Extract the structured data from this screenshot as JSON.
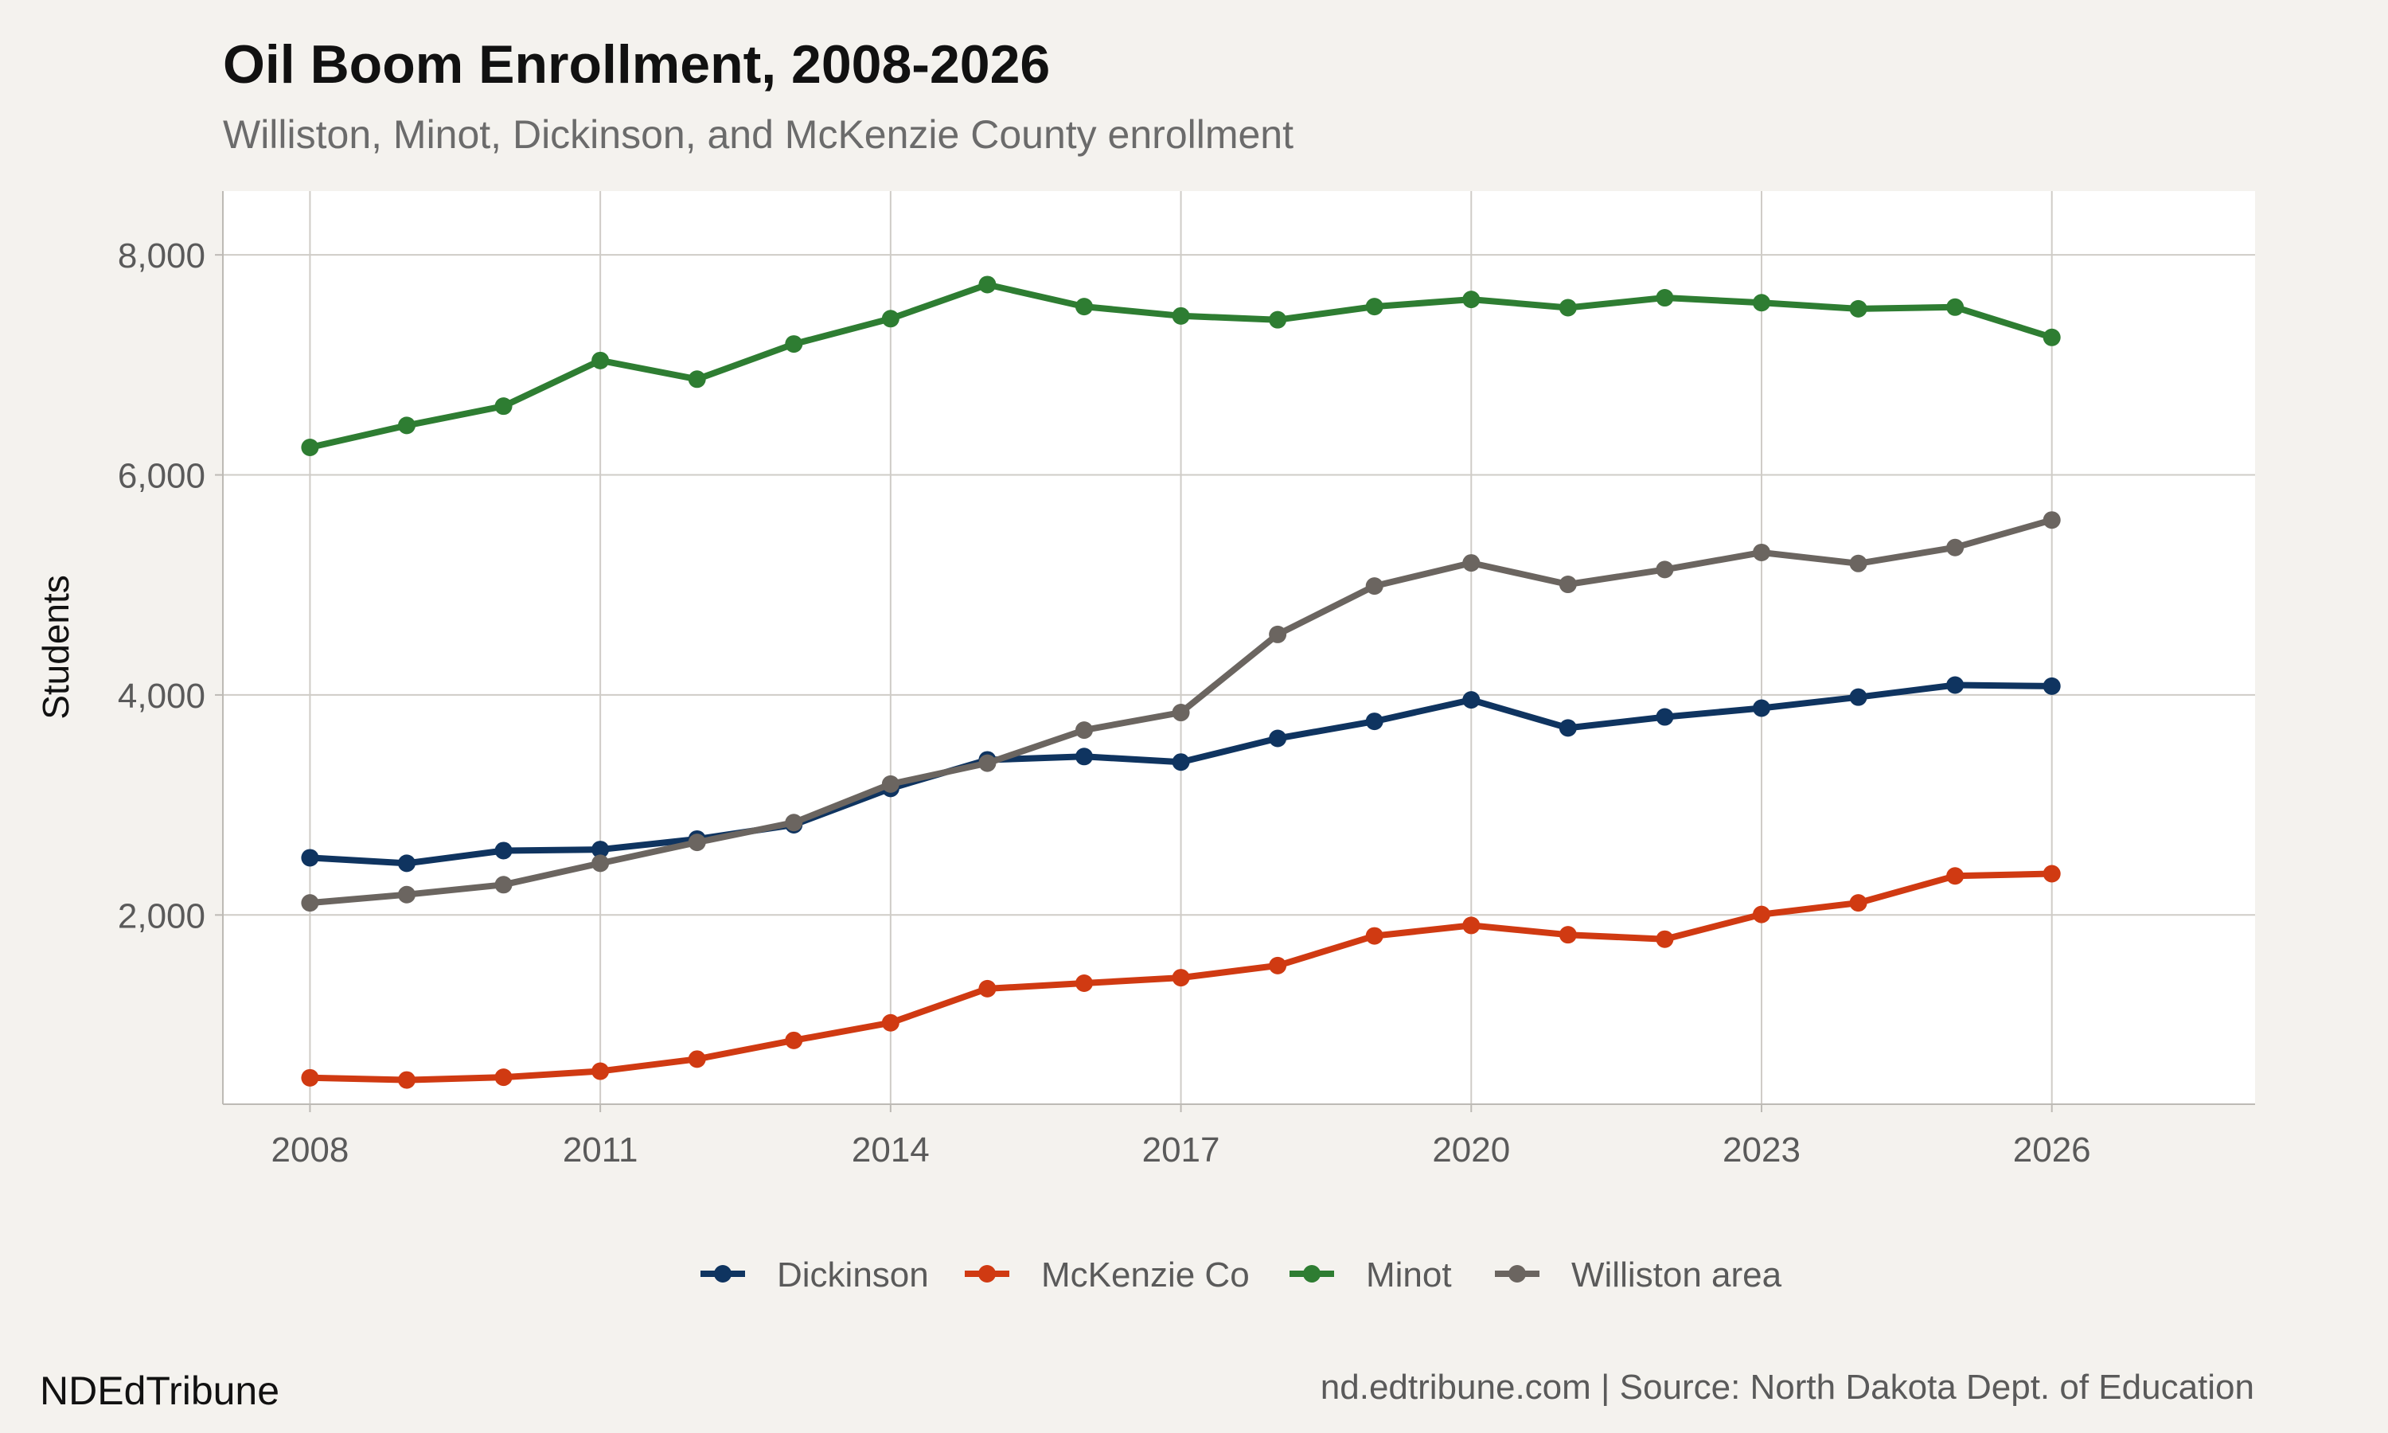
{
  "header": {
    "title": "Oil Boom Enrollment, 2008-2026",
    "subtitle": "Williston, Minot, Dickinson, and McKenzie County enrollment"
  },
  "footer": {
    "brand": "NDEdTribune",
    "source": "nd.edtribune.com | Source: North Dakota Dept. of Education"
  },
  "chart_data": {
    "type": "line",
    "title": "Oil Boom Enrollment, 2008-2026",
    "subtitle": "Williston, Minot, Dickinson, and McKenzie County enrollment",
    "xlabel": "",
    "ylabel": "Students",
    "x": [
      2008,
      2009,
      2010,
      2011,
      2012,
      2013,
      2014,
      2015,
      2016,
      2017,
      2018,
      2019,
      2020,
      2021,
      2022,
      2023,
      2024,
      2025,
      2026
    ],
    "xlim": [
      2007.1,
      2028.1
    ],
    "ylim": [
      280,
      8580
    ],
    "x_ticks": [
      2008,
      2011,
      2014,
      2017,
      2020,
      2023,
      2026
    ],
    "x_tick_labels": [
      "2008",
      "2011",
      "2014",
      "2017",
      "2020",
      "2023",
      "2026"
    ],
    "y_ticks": [
      2000,
      4000,
      6000,
      8000
    ],
    "y_tick_labels": [
      "2,000",
      "4,000",
      "6,000",
      "8,000"
    ],
    "grid": true,
    "legend_position": "bottom",
    "series": [
      {
        "name": "Dickinson",
        "color": "#0f3460",
        "values": [
          2520,
          2470,
          2585,
          2595,
          2690,
          2820,
          3150,
          3410,
          3440,
          3390,
          3605,
          3760,
          3955,
          3700,
          3800,
          3880,
          3980,
          4090,
          4080
        ]
      },
      {
        "name": "McKenzie Co",
        "color": "#d03a12",
        "values": [
          520,
          500,
          525,
          580,
          690,
          860,
          1020,
          1330,
          1380,
          1430,
          1540,
          1810,
          1905,
          1820,
          1780,
          2005,
          2110,
          2355,
          2375
        ]
      },
      {
        "name": "Minot",
        "color": "#2e7d32",
        "values": [
          6250,
          6450,
          6625,
          7040,
          6870,
          7190,
          7420,
          7730,
          7530,
          7445,
          7410,
          7530,
          7595,
          7520,
          7610,
          7565,
          7510,
          7525,
          7250
        ]
      },
      {
        "name": "Williston area",
        "color": "#6b6560",
        "values": [
          2110,
          2185,
          2275,
          2470,
          2660,
          2840,
          3190,
          3380,
          3680,
          3840,
          4550,
          4990,
          5200,
          5005,
          5140,
          5295,
          5195,
          5340,
          5590
        ]
      }
    ]
  }
}
